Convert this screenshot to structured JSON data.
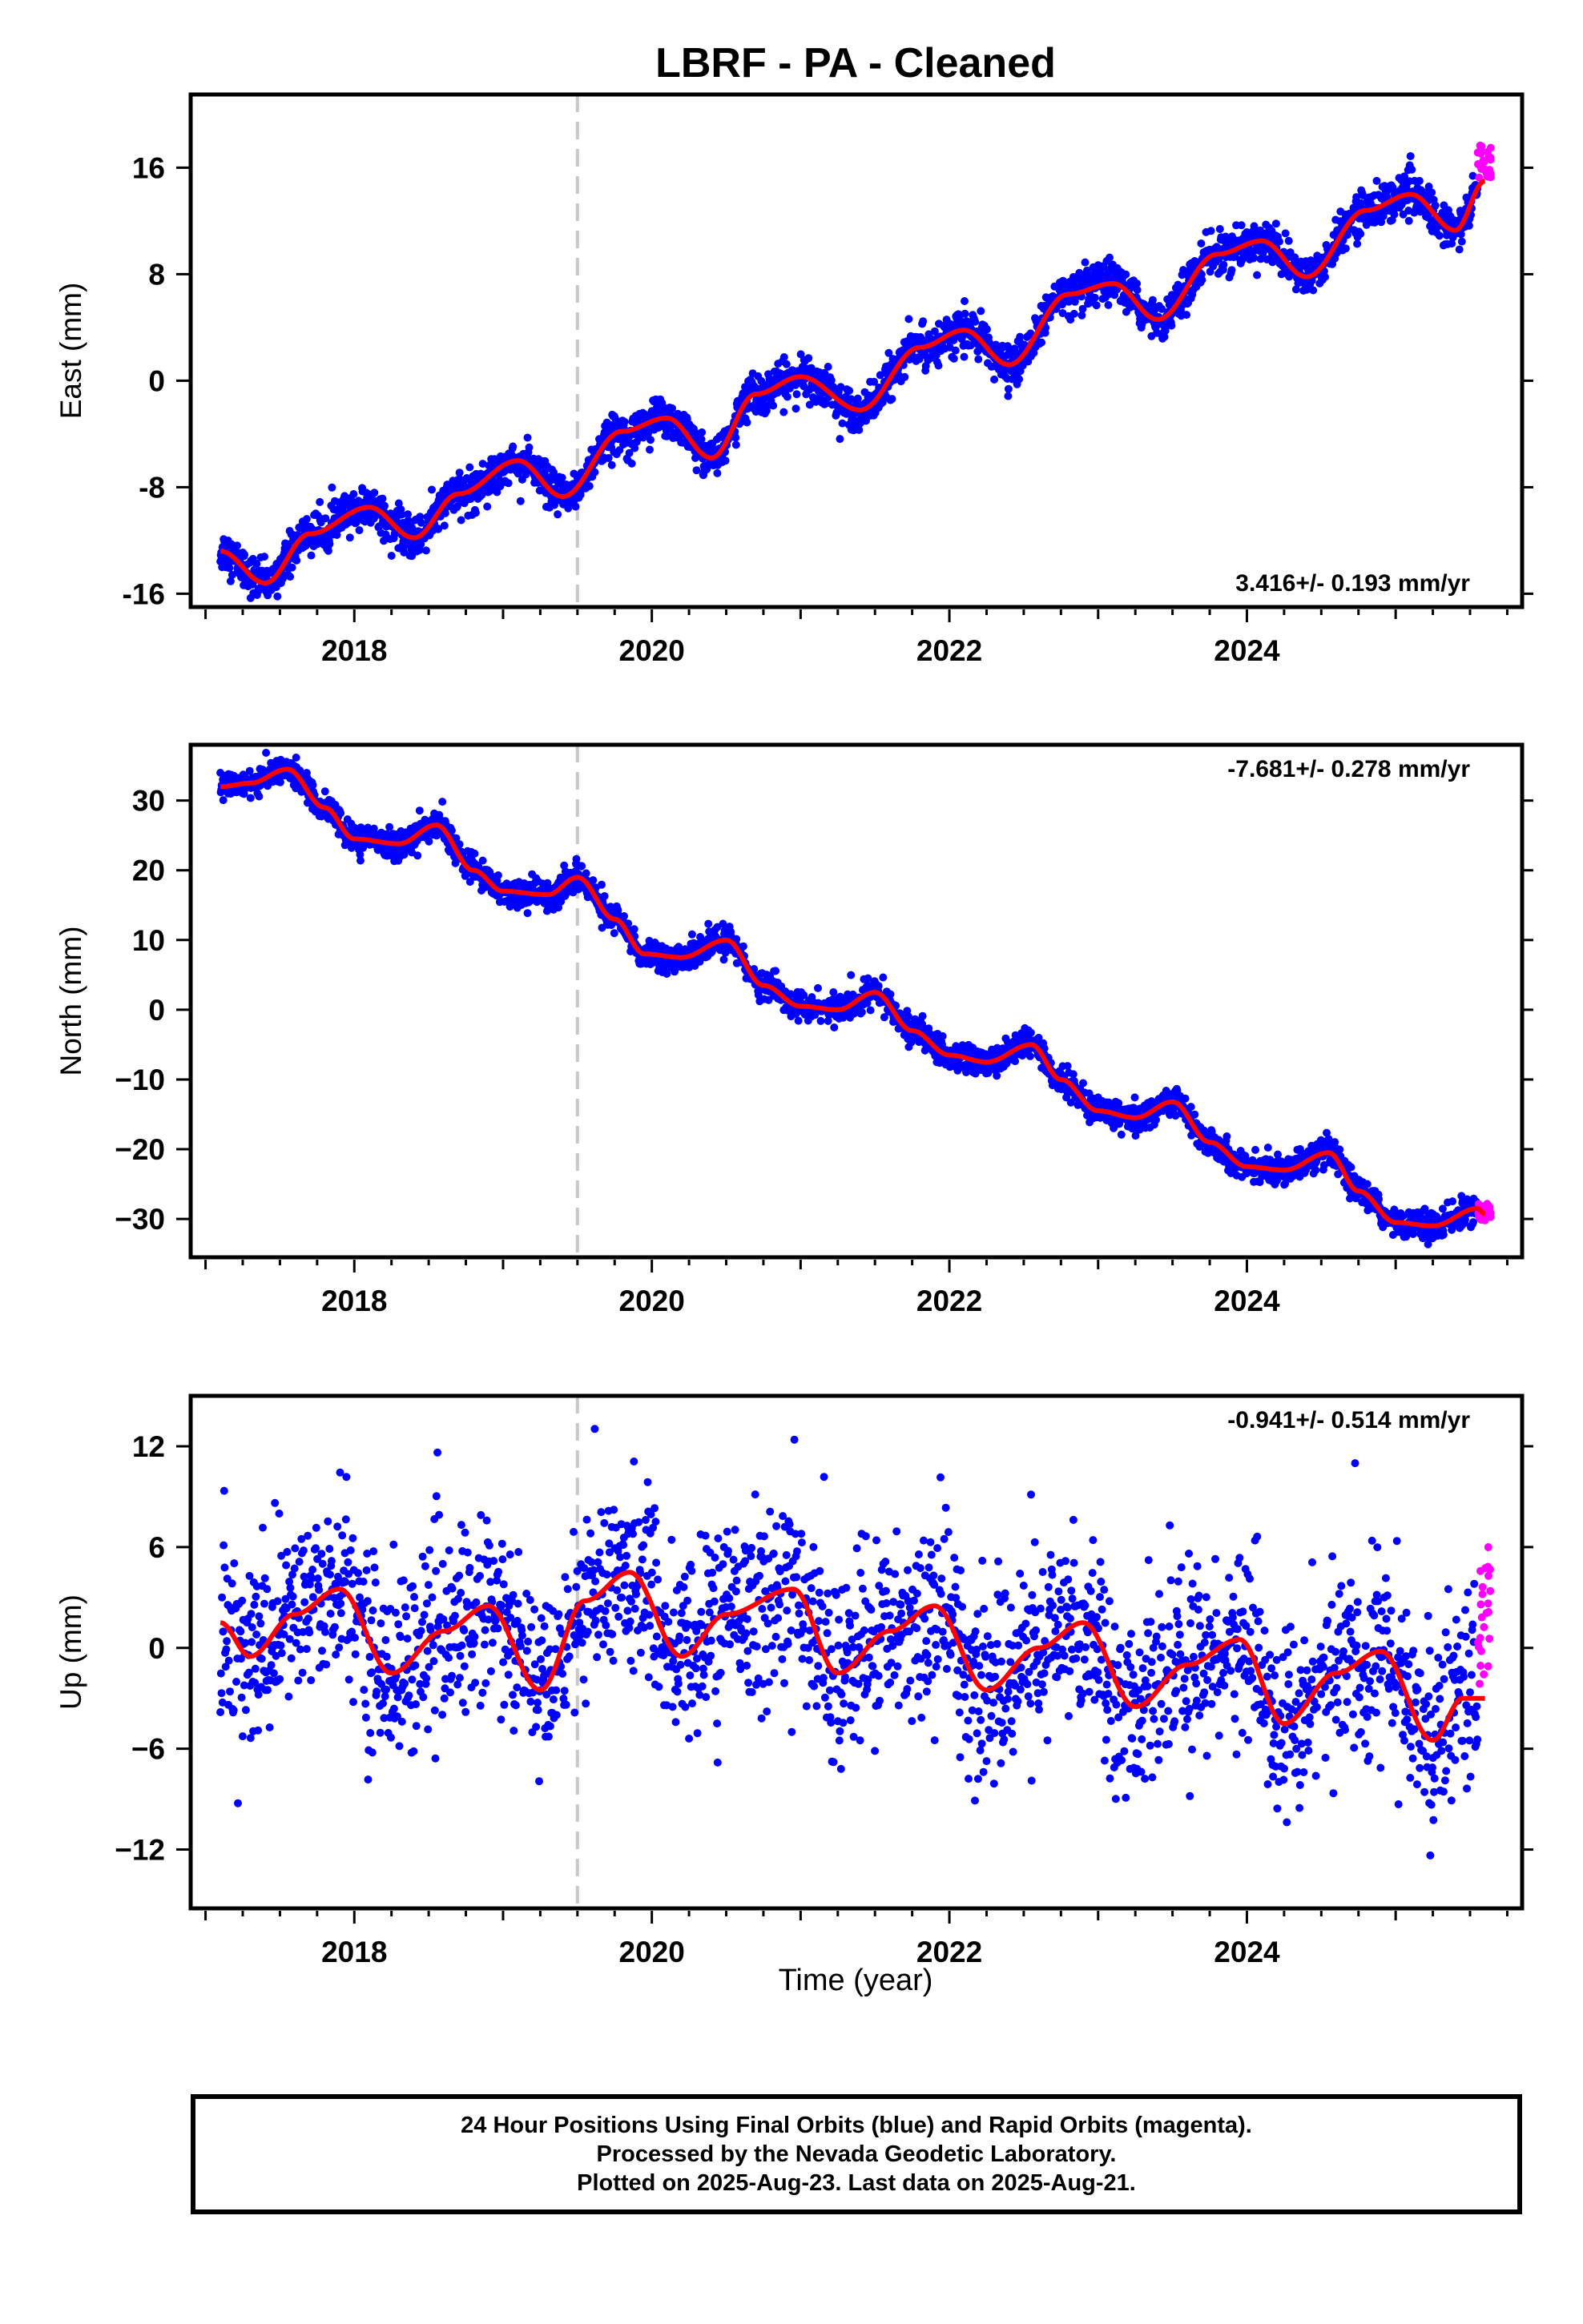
{
  "title": "LBRF  - PA - Cleaned",
  "xlabel": "Time (year)",
  "footer": [
    "24 Hour Positions Using Final Orbits (blue) and Rapid Orbits (magenta).",
    "Processed by the Nevada Geodetic Laboratory.",
    "Plotted on 2025-Aug-23. Last data on 2025-Aug-21."
  ],
  "colors": {
    "final": "#0000ff",
    "rapid": "#ff00ff",
    "model": "#ff0000",
    "event_line": "#c8c8c8"
  },
  "chart_data": [
    {
      "type": "scatter",
      "panel": "east",
      "ylabel": "East (mm)",
      "rate": "3.416+/- 0.193 mm/yr",
      "rate_position": "bottom-right",
      "xlim": [
        2016.9,
        2025.85
      ],
      "ylim": [
        -17,
        21.5
      ],
      "xticks": [
        2018,
        2020,
        2022,
        2024
      ],
      "xtick_labels": [
        "2018",
        "2020",
        "2022",
        "2024"
      ],
      "yticks": [
        -16,
        -8,
        0,
        8,
        16
      ],
      "ytick_labels": [
        "-16",
        "-8",
        "0",
        "8",
        "16"
      ],
      "event_line_x": 2019.5,
      "series": [
        {
          "name": "final",
          "model": {
            "start": 2017.1,
            "end": 2025.6,
            "y0": -12.8,
            "rate": 3.416,
            "a1": 1.8,
            "ph1": 0.6,
            "a2": 0.5,
            "ph2": 0.3
          },
          "scatter": 0.75,
          "spacing_days": 1
        },
        {
          "name": "rapid",
          "range": [
            2025.55,
            2025.64
          ],
          "around": 16.5,
          "spread": 2.5
        },
        {
          "name": "model",
          "knots": [
            [
              2017.1,
              -12.8
            ],
            [
              2017.4,
              -15.2
            ],
            [
              2017.7,
              -11.5
            ],
            [
              2018.1,
              -9.5
            ],
            [
              2018.4,
              -11.8
            ],
            [
              2018.7,
              -8.5
            ],
            [
              2019.1,
              -6
            ],
            [
              2019.4,
              -8.7
            ],
            [
              2019.8,
              -3.8
            ],
            [
              2020.1,
              -2.8
            ],
            [
              2020.4,
              -5.8
            ],
            [
              2020.7,
              -1
            ],
            [
              2021.0,
              0.3
            ],
            [
              2021.4,
              -2.2
            ],
            [
              2021.8,
              2.5
            ],
            [
              2022.1,
              3.8
            ],
            [
              2022.4,
              1.2
            ],
            [
              2022.8,
              6.5
            ],
            [
              2023.1,
              7.3
            ],
            [
              2023.4,
              4.6
            ],
            [
              2023.8,
              9.5
            ],
            [
              2024.1,
              10.5
            ],
            [
              2024.4,
              7.8
            ],
            [
              2024.8,
              12.8
            ],
            [
              2025.1,
              14
            ],
            [
              2025.4,
              11.3
            ],
            [
              2025.6,
              15
            ]
          ]
        }
      ]
    },
    {
      "type": "scatter",
      "panel": "north",
      "ylabel": "North (mm)",
      "rate": "-7.681+/- 0.278 mm/yr",
      "rate_position": "top-right",
      "xlim": [
        2016.9,
        2025.85
      ],
      "ylim": [
        -35.5,
        38
      ],
      "xticks": [
        2018,
        2020,
        2022,
        2024
      ],
      "xtick_labels": [
        "2018",
        "2020",
        "2022",
        "2024"
      ],
      "yticks": [
        -30,
        -20,
        -10,
        0,
        10,
        20,
        30
      ],
      "ytick_labels": [
        "−30",
        "−20",
        "−10",
        "0",
        "10",
        "20",
        "30"
      ],
      "event_line_x": 2019.5,
      "series": [
        {
          "name": "final",
          "scatter": 1.0,
          "spacing_days": 1
        },
        {
          "name": "rapid",
          "range": [
            2025.55,
            2025.64
          ],
          "around": -29,
          "spread": 2.5
        },
        {
          "name": "model",
          "knots": [
            [
              2017.1,
              32
            ],
            [
              2017.3,
              32.5
            ],
            [
              2017.55,
              34.5
            ],
            [
              2017.8,
              29
            ],
            [
              2018.0,
              24.5
            ],
            [
              2018.3,
              23.8
            ],
            [
              2018.55,
              26.5
            ],
            [
              2018.8,
              20
            ],
            [
              2019.0,
              17
            ],
            [
              2019.3,
              16.5
            ],
            [
              2019.5,
              19
            ],
            [
              2019.75,
              13
            ],
            [
              2019.95,
              8
            ],
            [
              2020.2,
              7.5
            ],
            [
              2020.5,
              10
            ],
            [
              2020.75,
              3.5
            ],
            [
              2021.0,
              0.5
            ],
            [
              2021.25,
              0
            ],
            [
              2021.5,
              2.5
            ],
            [
              2021.75,
              -3
            ],
            [
              2022.0,
              -6.5
            ],
            [
              2022.25,
              -7.5
            ],
            [
              2022.55,
              -5
            ],
            [
              2022.75,
              -10
            ],
            [
              2023.0,
              -14.5
            ],
            [
              2023.25,
              -15.5
            ],
            [
              2023.5,
              -13.2
            ],
            [
              2023.75,
              -19
            ],
            [
              2024.0,
              -22.5
            ],
            [
              2024.25,
              -23
            ],
            [
              2024.55,
              -20.5
            ],
            [
              2024.75,
              -26
            ],
            [
              2025.0,
              -30.5
            ],
            [
              2025.25,
              -31
            ],
            [
              2025.55,
              -28.5
            ],
            [
              2025.6,
              -29.3
            ]
          ]
        }
      ]
    },
    {
      "type": "scatter",
      "panel": "up",
      "ylabel": "Up (mm)",
      "rate": "-0.941+/- 0.514 mm/yr",
      "rate_position": "top-right",
      "xlim": [
        2016.9,
        2025.85
      ],
      "ylim": [
        -15.5,
        15
      ],
      "xticks": [
        2018,
        2020,
        2022,
        2024
      ],
      "xtick_labels": [
        "2018",
        "2020",
        "2022",
        "2024"
      ],
      "yticks": [
        -12,
        -6,
        0,
        6,
        12
      ],
      "ytick_labels": [
        "−12",
        "−6",
        "0",
        "6",
        "12"
      ],
      "event_line_x": 2019.5,
      "series": [
        {
          "name": "final",
          "scatter": 2.8,
          "spacing_days": 1.3
        },
        {
          "name": "rapid",
          "range": [
            2025.55,
            2025.64
          ],
          "around": 1.5,
          "spread": 9
        },
        {
          "name": "model",
          "knots": [
            [
              2017.1,
              1.5
            ],
            [
              2017.3,
              -0.5
            ],
            [
              2017.6,
              2
            ],
            [
              2017.9,
              3.5
            ],
            [
              2018.25,
              -1.5
            ],
            [
              2018.6,
              1
            ],
            [
              2018.9,
              2.5
            ],
            [
              2019.25,
              -2.5
            ],
            [
              2019.55,
              2.8
            ],
            [
              2019.85,
              4.5
            ],
            [
              2020.2,
              -0.5
            ],
            [
              2020.5,
              2
            ],
            [
              2020.95,
              3.5
            ],
            [
              2021.25,
              -1.5
            ],
            [
              2021.6,
              1
            ],
            [
              2021.9,
              2.5
            ],
            [
              2022.25,
              -2.5
            ],
            [
              2022.6,
              0
            ],
            [
              2022.9,
              1.5
            ],
            [
              2023.25,
              -3.5
            ],
            [
              2023.6,
              -1
            ],
            [
              2023.95,
              0.5
            ],
            [
              2024.25,
              -4.5
            ],
            [
              2024.6,
              -1.5
            ],
            [
              2024.9,
              -0.2
            ],
            [
              2025.25,
              -5.5
            ],
            [
              2025.45,
              -3
            ],
            [
              2025.6,
              -3
            ]
          ]
        }
      ]
    }
  ]
}
